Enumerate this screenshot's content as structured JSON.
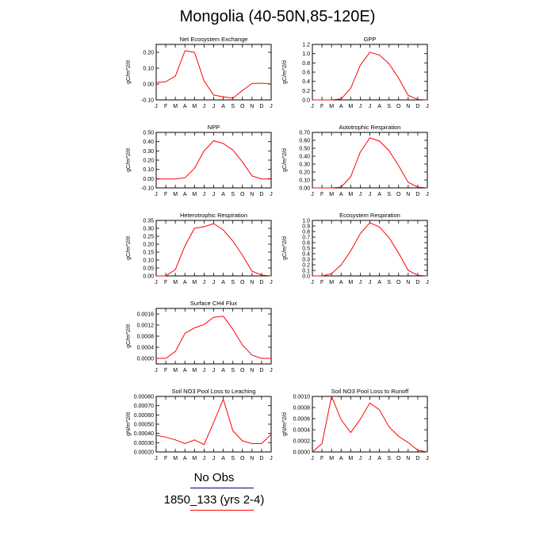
{
  "title": "Mongolia (40-50N,85-120E)",
  "legend": {
    "items": [
      {
        "label": "No Obs",
        "color": "#000080"
      },
      {
        "label": "1850_133 (yrs 2-4)",
        "color": "#ff0000"
      }
    ]
  },
  "months": [
    "J",
    "F",
    "M",
    "A",
    "M",
    "J",
    "J",
    "A",
    "S",
    "O",
    "N",
    "D",
    "J"
  ],
  "series_color": "#ff0000",
  "chart_data": [
    {
      "type": "line",
      "title": "Net Ecosystem Exchange",
      "ylabel": "gC/m^2/d",
      "ylim": [
        -0.1,
        0.25
      ],
      "yticks": [
        "-0.10",
        "0.00",
        "0.10",
        "0.20"
      ],
      "ytick_values": [
        -0.1,
        0.0,
        0.1,
        0.2
      ],
      "values": [
        0.01,
        0.015,
        0.05,
        0.21,
        0.2,
        0.02,
        -0.07,
        -0.08,
        -0.09,
        -0.04,
        0.003,
        0.005,
        0.001
      ]
    },
    {
      "type": "line",
      "title": "GPP",
      "ylabel": "gC/m^2/d",
      "ylim": [
        0,
        1.2
      ],
      "yticks": [
        "0.0",
        "0.2",
        "0.4",
        "0.6",
        "0.8",
        "1.0",
        "1.2"
      ],
      "ytick_values": [
        0,
        0.2,
        0.4,
        0.6,
        0.8,
        1.0,
        1.2
      ],
      "values": [
        0,
        0,
        0,
        0.02,
        0.25,
        0.75,
        1.03,
        0.97,
        0.78,
        0.47,
        0.1,
        0.01,
        0
      ]
    },
    {
      "type": "line",
      "title": "NPP",
      "ylabel": "gC/m^2/d",
      "ylim": [
        -0.1,
        0.5
      ],
      "yticks": [
        "-0.10",
        "0.00",
        "0.10",
        "0.20",
        "0.30",
        "0.40",
        "0.50"
      ],
      "ytick_values": [
        -0.1,
        0.0,
        0.1,
        0.2,
        0.3,
        0.4,
        0.5
      ],
      "values": [
        -0.003,
        -0.003,
        -0.003,
        0.01,
        0.11,
        0.3,
        0.41,
        0.38,
        0.31,
        0.18,
        0.03,
        -0.003,
        -0.003
      ]
    },
    {
      "type": "line",
      "title": "Autotrophic Respiration",
      "ylabel": "gC/m^2/d",
      "ylim": [
        0,
        0.7
      ],
      "yticks": [
        "0.00",
        "0.10",
        "0.20",
        "0.30",
        "0.40",
        "0.50",
        "0.60",
        "0.70"
      ],
      "ytick_values": [
        0,
        0.1,
        0.2,
        0.3,
        0.4,
        0.5,
        0.6,
        0.7
      ],
      "values": [
        0,
        0,
        0,
        0.01,
        0.14,
        0.45,
        0.63,
        0.59,
        0.47,
        0.28,
        0.07,
        0.01,
        0
      ]
    },
    {
      "type": "line",
      "title": "Heterotrophic Respiration",
      "ylabel": "gC/m^2/d",
      "ylim": [
        0,
        0.35
      ],
      "yticks": [
        "0.00",
        "0.05",
        "0.10",
        "0.15",
        "0.20",
        "0.25",
        "0.30",
        "0.35"
      ],
      "ytick_values": [
        0,
        0.05,
        0.1,
        0.15,
        0.2,
        0.25,
        0.3,
        0.35
      ],
      "values": [
        0,
        0,
        0.04,
        0.19,
        0.3,
        0.31,
        0.33,
        0.29,
        0.22,
        0.13,
        0.03,
        0.005,
        0
      ]
    },
    {
      "type": "line",
      "title": "Ecosystem Respiration",
      "ylabel": "gC/m^2/d",
      "ylim": [
        0,
        1.0
      ],
      "yticks": [
        "0.0",
        "0.1",
        "0.2",
        "0.3",
        "0.4",
        "0.5",
        "0.6",
        "0.7",
        "0.8",
        "0.9",
        "1.0"
      ],
      "ytick_values": [
        0,
        0.1,
        0.2,
        0.3,
        0.4,
        0.5,
        0.6,
        0.7,
        0.8,
        0.9,
        1.0
      ],
      "values": [
        0,
        0,
        0.04,
        0.2,
        0.45,
        0.76,
        0.96,
        0.88,
        0.69,
        0.41,
        0.1,
        0.01,
        0
      ]
    },
    {
      "type": "line",
      "title": "Surface CH4 Flux",
      "ylabel": "gC/m^2/d",
      "ylim": [
        -0.0002,
        0.0018
      ],
      "yticks": [
        "0.0000",
        "0.0004",
        "0.0008",
        "0.0012",
        "0.0016"
      ],
      "ytick_values": [
        0,
        0.0004,
        0.0008,
        0.0012,
        0.0016
      ],
      "values": [
        0,
        0,
        0.00025,
        0.0009,
        0.0011,
        0.00122,
        0.00148,
        0.00152,
        0.00105,
        0.00048,
        0.00012,
        0,
        0
      ]
    },
    null,
    {
      "type": "line",
      "title": "Soil NO3 Pool Loss to Leaching",
      "ylabel": "gN/m^2/d",
      "ylim": [
        0.0002,
        0.0008
      ],
      "yticks": [
        "0.00020",
        "0.00030",
        "0.00040",
        "0.00050",
        "0.00060",
        "0.00070",
        "0.00080"
      ],
      "ytick_values": [
        0.0002,
        0.0003,
        0.0004,
        0.0005,
        0.0006,
        0.0007,
        0.0008
      ],
      "values": [
        0.00038,
        0.00036,
        0.00033,
        0.00029,
        0.00033,
        0.00028,
        0.00052,
        0.00077,
        0.00043,
        0.00032,
        0.00029,
        0.00029,
        0.00039
      ]
    },
    {
      "type": "line",
      "title": "Soil NO3 Pool Loss to Runoff",
      "ylabel": "gN/m^2/d",
      "ylim": [
        0,
        0.001
      ],
      "yticks": [
        "0.0000",
        "0.0002",
        "0.0004",
        "0.0006",
        "0.0008",
        "0.0010"
      ],
      "ytick_values": [
        0,
        0.0002,
        0.0004,
        0.0006,
        0.0008,
        0.001
      ],
      "values": [
        0,
        0.00015,
        0.001,
        0.00058,
        0.00035,
        0.00059,
        0.00088,
        0.00076,
        0.00045,
        0.00028,
        0.00017,
        3e-05,
        0
      ]
    }
  ]
}
